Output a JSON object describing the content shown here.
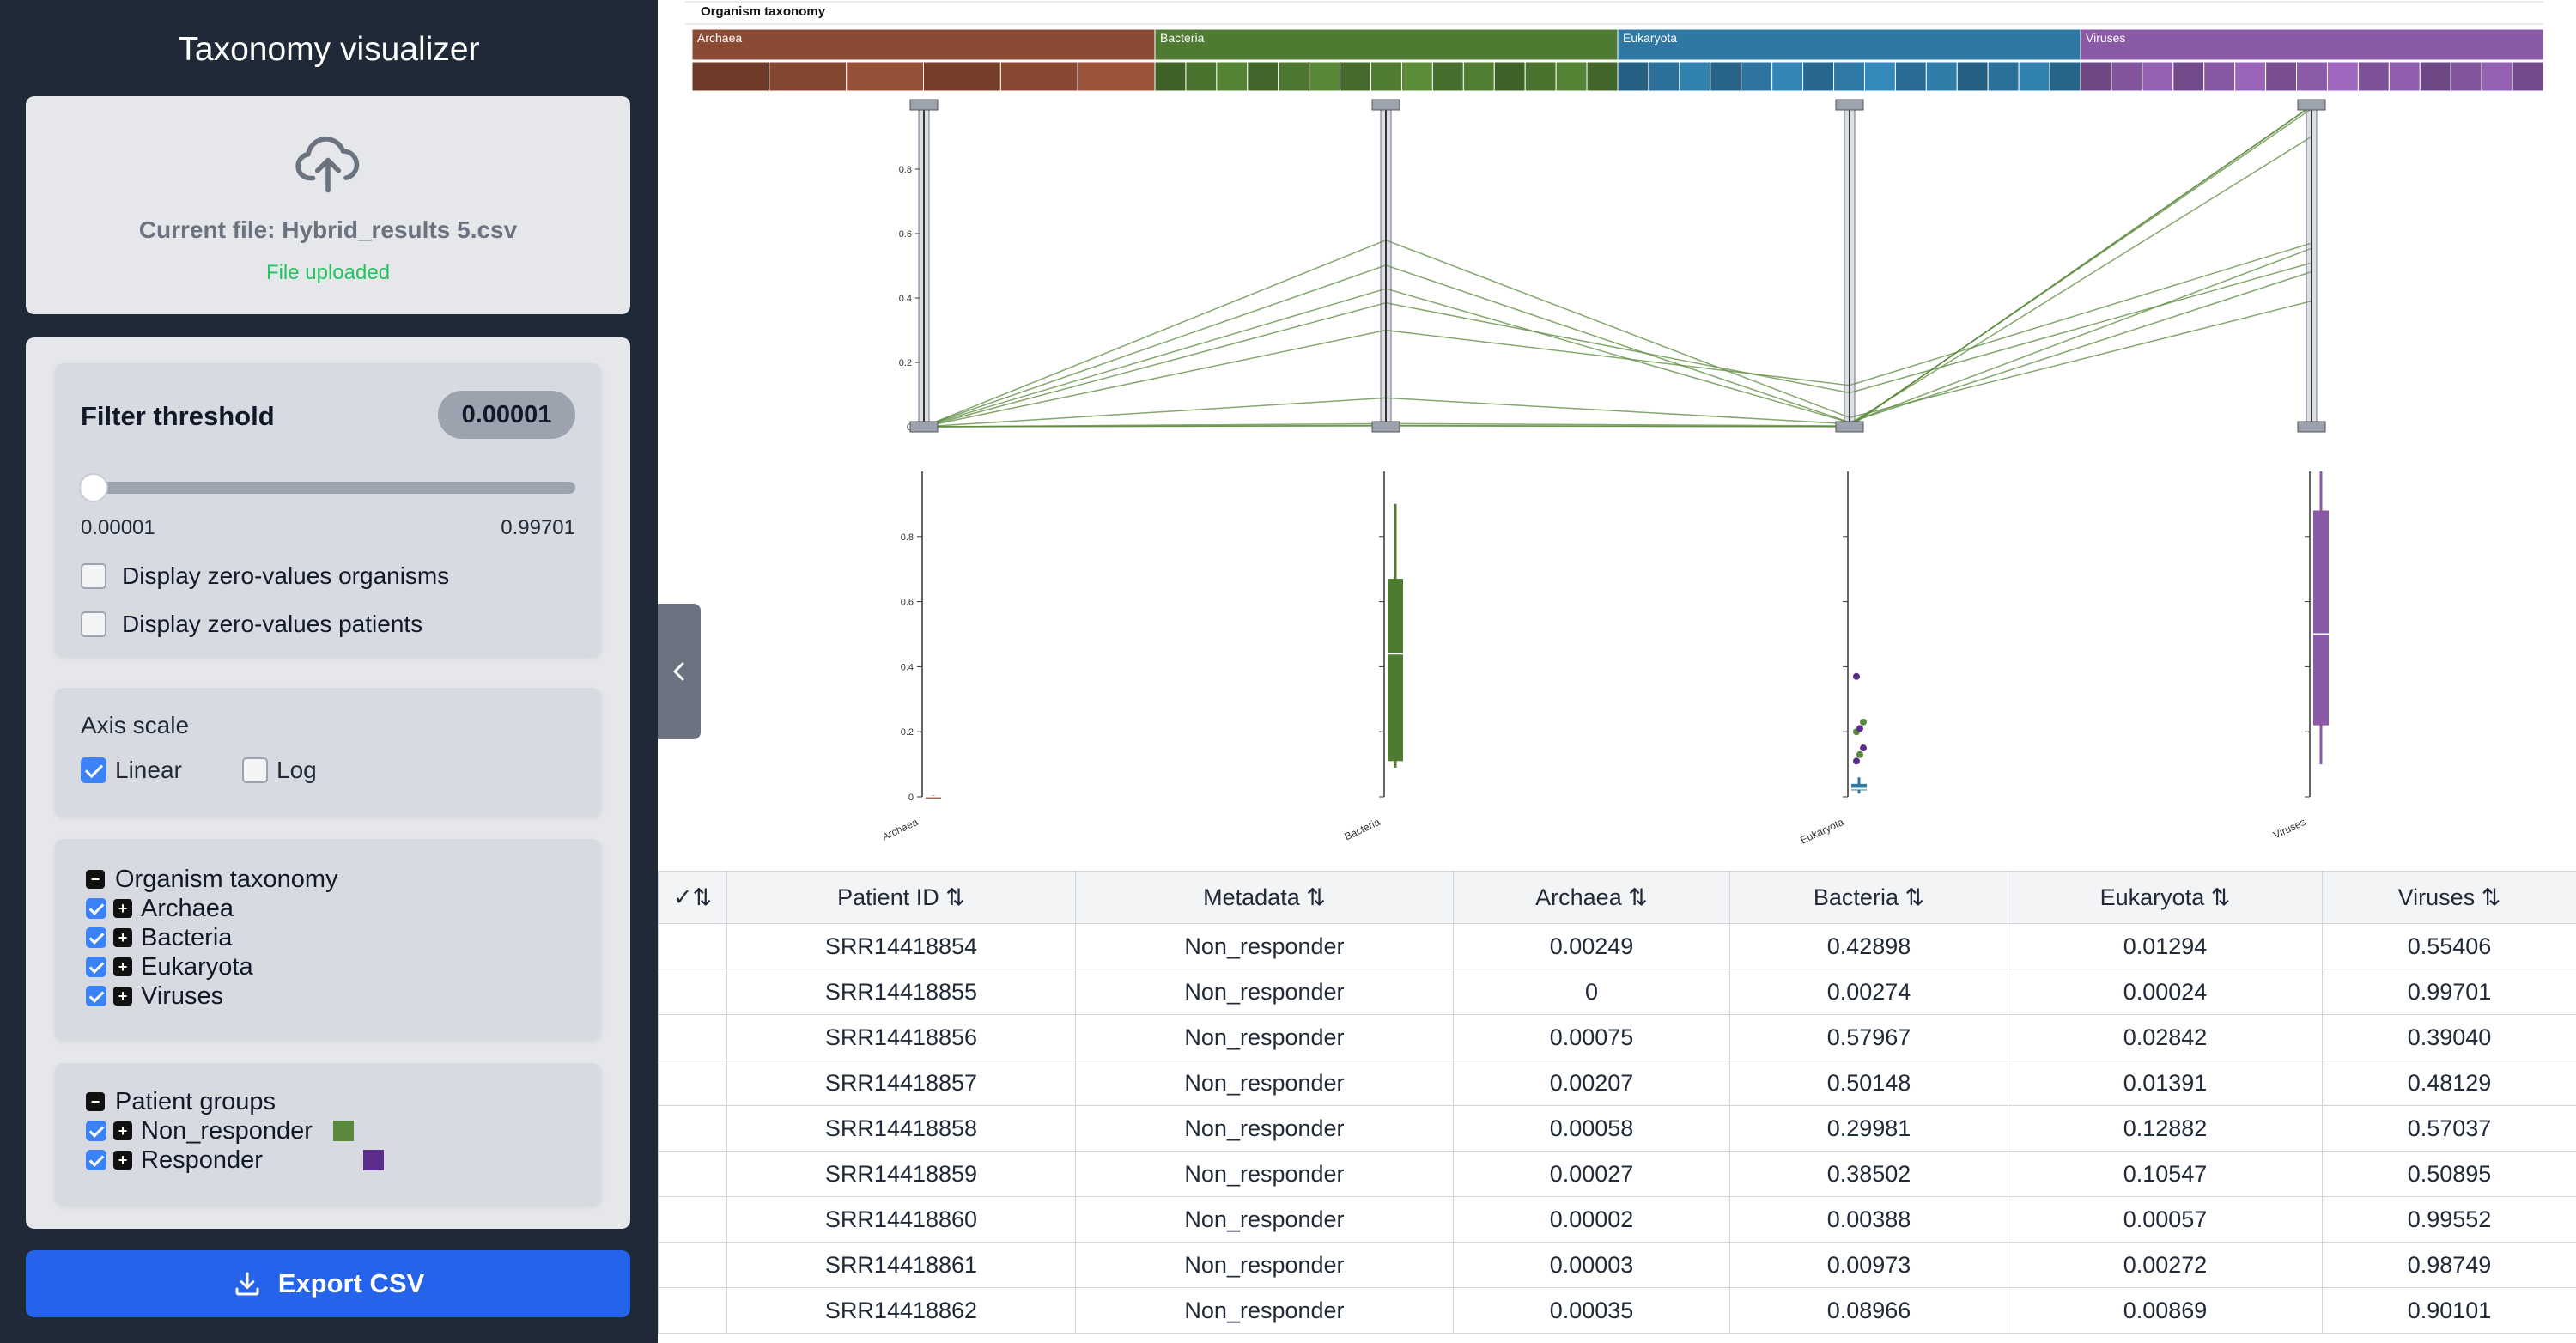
{
  "app": {
    "title": "Taxonomy visualizer"
  },
  "upload": {
    "current_file": "Current file: Hybrid_results 5.csv",
    "status": "File uploaded"
  },
  "filter": {
    "title": "Filter threshold",
    "value": "0.00001",
    "min_label": "0.00001",
    "max_label": "0.99701",
    "slider_position": 0.0,
    "display_zero_organisms": "Display zero-values organisms",
    "display_zero_patients": "Display zero-values patients"
  },
  "axis_scale": {
    "title": "Axis scale",
    "linear": "Linear",
    "log": "Log",
    "selected": "Linear"
  },
  "taxonomy_tree": {
    "root": "Organism taxonomy",
    "items": [
      "Archaea",
      "Bacteria",
      "Eukaryota",
      "Viruses"
    ]
  },
  "patient_groups": {
    "root": "Patient groups",
    "items": [
      {
        "label": "Non_responder",
        "color": "#5b8a3c"
      },
      {
        "label": "Responder",
        "color": "#5b2d8c"
      }
    ]
  },
  "export": {
    "label": "Export CSV"
  },
  "colors": {
    "archaea": "#8b4a33",
    "bacteria": "#4f7a32",
    "eukaryota": "#2e78a3",
    "viruses": "#8a5aa6",
    "non_responder": "#5b8a3c",
    "responder": "#5b2d8c",
    "accent": "#2563eb"
  },
  "chart_data": [
    {
      "type": "treemap",
      "title": "Organism taxonomy",
      "groups": [
        {
          "name": "Archaea",
          "leaf_count": 6
        },
        {
          "name": "Bacteria",
          "leaf_count": 15
        },
        {
          "name": "Eukaryota",
          "leaf_count": 15
        },
        {
          "name": "Viruses",
          "leaf_count": 15
        }
      ]
    },
    {
      "type": "parallel-coordinates",
      "axes": [
        "Archaea",
        "Bacteria",
        "Eukaryota",
        "Viruses"
      ],
      "ylim": [
        0,
        1
      ],
      "yticks": [
        "0",
        "0.2",
        "0.4",
        "0.6",
        "0.8"
      ],
      "series": [
        {
          "values": [
            0.00249,
            0.42898,
            0.01294,
            0.55406
          ]
        },
        {
          "values": [
            0,
            0.00274,
            0.00024,
            0.99701
          ]
        },
        {
          "values": [
            0.00075,
            0.57967,
            0.02842,
            0.3904
          ]
        },
        {
          "values": [
            0.00207,
            0.50148,
            0.01391,
            0.48129
          ]
        },
        {
          "values": [
            0.00058,
            0.29981,
            0.12882,
            0.57037
          ]
        },
        {
          "values": [
            0.00027,
            0.38502,
            0.10547,
            0.50895
          ]
        },
        {
          "values": [
            2e-05,
            0.00388,
            0.00057,
            0.99552
          ]
        },
        {
          "values": [
            3e-05,
            0.00973,
            0.00272,
            0.98749
          ]
        },
        {
          "values": [
            0.00035,
            0.08966,
            0.00869,
            0.90101
          ]
        }
      ]
    },
    {
      "type": "box",
      "categories": [
        "Archaea",
        "Bacteria",
        "Eukaryota",
        "Viruses"
      ],
      "ylim": [
        0,
        1
      ],
      "yticks": [
        "0",
        "0.2",
        "0.4",
        "0.6",
        "0.8"
      ],
      "boxes": [
        {
          "min": 0,
          "q1": 0,
          "median": 0.001,
          "q3": 0.003,
          "max": 0.005
        },
        {
          "min": 0.09,
          "q1": 0.11,
          "median": 0.44,
          "q3": 0.67,
          "max": 0.9
        },
        {
          "min": 0.01,
          "q1": 0.02,
          "median": 0.025,
          "q3": 0.04,
          "max": 0.06,
          "outliers": [
            0.11,
            0.13,
            0.15,
            0.2,
            0.21,
            0.23,
            0.37
          ]
        },
        {
          "min": 0.1,
          "q1": 0.22,
          "median": 0.5,
          "q3": 0.88,
          "max": 1.0
        }
      ]
    }
  ],
  "table": {
    "columns": [
      "✓⇅",
      "Patient ID ⇅",
      "Metadata ⇅",
      "Archaea ⇅",
      "Bacteria ⇅",
      "Eukaryota ⇅",
      "Viruses ⇅"
    ],
    "rows": [
      [
        "",
        "SRR14418854",
        "Non_responder",
        "0.00249",
        "0.42898",
        "0.01294",
        "0.55406"
      ],
      [
        "",
        "SRR14418855",
        "Non_responder",
        "0",
        "0.00274",
        "0.00024",
        "0.99701"
      ],
      [
        "",
        "SRR14418856",
        "Non_responder",
        "0.00075",
        "0.57967",
        "0.02842",
        "0.39040"
      ],
      [
        "",
        "SRR14418857",
        "Non_responder",
        "0.00207",
        "0.50148",
        "0.01391",
        "0.48129"
      ],
      [
        "",
        "SRR14418858",
        "Non_responder",
        "0.00058",
        "0.29981",
        "0.12882",
        "0.57037"
      ],
      [
        "",
        "SRR14418859",
        "Non_responder",
        "0.00027",
        "0.38502",
        "0.10547",
        "0.50895"
      ],
      [
        "",
        "SRR14418860",
        "Non_responder",
        "0.00002",
        "0.00388",
        "0.00057",
        "0.99552"
      ],
      [
        "",
        "SRR14418861",
        "Non_responder",
        "0.00003",
        "0.00973",
        "0.00272",
        "0.98749"
      ],
      [
        "",
        "SRR14418862",
        "Non_responder",
        "0.00035",
        "0.08966",
        "0.00869",
        "0.90101"
      ]
    ]
  }
}
